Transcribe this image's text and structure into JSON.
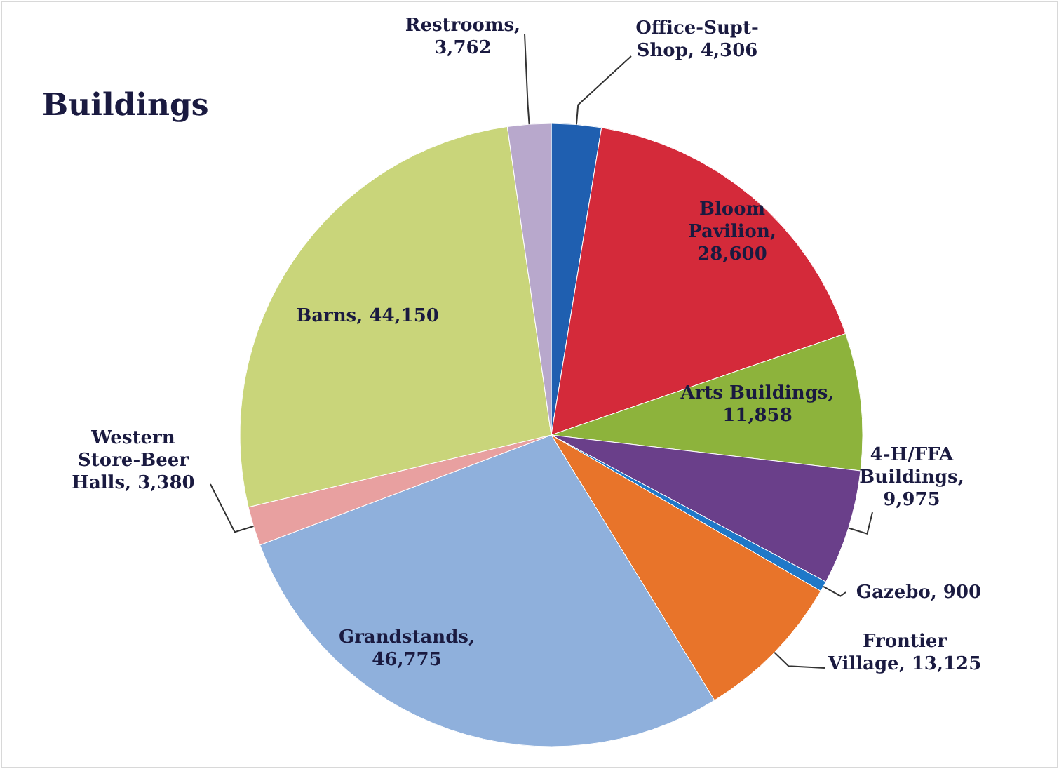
{
  "chart_data": {
    "type": "pie",
    "title": "Buildings",
    "categories": [
      "Office-Supt-Shop",
      "Bloom Pavilion",
      "Arts Buildings",
      "4-H/FFA Buildings",
      "Gazebo",
      "Frontier Village",
      "Grandstands",
      "Western Store-Beer Halls",
      "Barns",
      "Restrooms"
    ],
    "values": [
      4306,
      28600,
      11858,
      9975,
      900,
      13125,
      46775,
      3380,
      44150,
      3762
    ],
    "value_labels": [
      ", 4,306",
      ", 28,600",
      ", 11,858",
      ", 9,975",
      ", 900",
      ", 13,125",
      ", 46,775",
      ", 3,380",
      ", 44,150",
      ", 3,762"
    ],
    "colors": [
      "#1f5fb0",
      "#d42a3a",
      "#8db33c",
      "#6a3f8a",
      "#1f78c8",
      "#e8742a",
      "#8fb0dc",
      "#e8a0a0",
      "#c9d57a",
      "#b8a8cc"
    ]
  }
}
